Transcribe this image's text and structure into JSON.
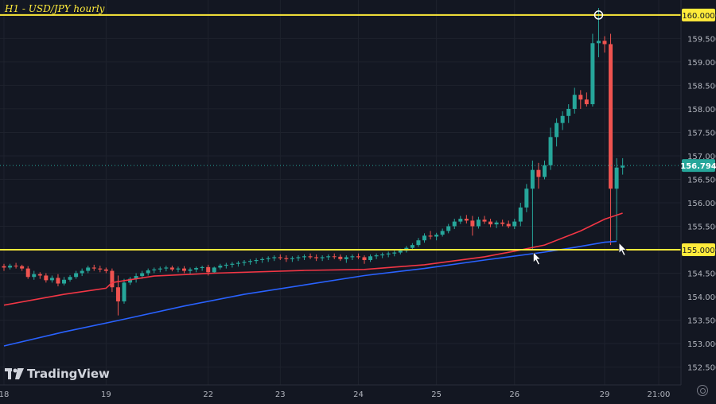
{
  "chart_data": {
    "type": "candlestick",
    "title": "H1 - USD/JPY hourly",
    "watermark": "TradingView",
    "y_ticks": [
      "152.500",
      "153.000",
      "153.500",
      "154.000",
      "154.500",
      "155.000",
      "155.500",
      "156.000",
      "156.500",
      "157.000",
      "157.500",
      "158.000",
      "158.500",
      "159.000",
      "159.500",
      "160.000"
    ],
    "ylim": [
      152.12,
      160.32
    ],
    "x_ticks": [
      {
        "label": "18",
        "index": 0
      },
      {
        "label": "19",
        "index": 17
      },
      {
        "label": "22",
        "index": 34
      },
      {
        "label": "23",
        "index": 46
      },
      {
        "label": "24",
        "index": 59
      },
      {
        "label": "25",
        "index": 72
      },
      {
        "label": "26",
        "index": 85
      },
      {
        "label": "29",
        "index": 100
      },
      {
        "label": "21:00",
        "index": 109
      }
    ],
    "current_price": "156.794",
    "levels": [
      {
        "price": "160.000",
        "color": "#ffeb3b"
      },
      {
        "price": "155.000",
        "color": "#ffeb3b"
      }
    ],
    "colors": {
      "up": "#26a69a",
      "down": "#ef5350",
      "ma_fast": "#f23645",
      "ma_slow": "#2962ff",
      "level": "#ffeb3b",
      "price_tag": "#26a69a",
      "grid": "#1e222d",
      "axis_text": "#b2b5be"
    },
    "candles": [
      [
        154.65,
        154.7,
        154.55,
        154.62
      ],
      [
        154.62,
        154.7,
        154.58,
        154.66
      ],
      [
        154.66,
        154.72,
        154.6,
        154.65
      ],
      [
        154.65,
        154.68,
        154.55,
        154.6
      ],
      [
        154.6,
        154.65,
        154.38,
        154.42
      ],
      [
        154.42,
        154.55,
        154.36,
        154.48
      ],
      [
        154.48,
        154.52,
        154.38,
        154.45
      ],
      [
        154.45,
        154.5,
        154.3,
        154.35
      ],
      [
        154.35,
        154.45,
        154.3,
        154.4
      ],
      [
        154.4,
        154.48,
        154.22,
        154.28
      ],
      [
        154.28,
        154.42,
        154.24,
        154.36
      ],
      [
        154.36,
        154.46,
        154.32,
        154.42
      ],
      [
        154.42,
        154.55,
        154.38,
        154.5
      ],
      [
        154.5,
        154.6,
        154.44,
        154.55
      ],
      [
        154.55,
        154.66,
        154.5,
        154.62
      ],
      [
        154.62,
        154.68,
        154.55,
        154.6
      ],
      [
        154.6,
        154.66,
        154.52,
        154.58
      ],
      [
        154.58,
        154.62,
        154.5,
        154.55
      ],
      [
        154.55,
        154.6,
        154.1,
        154.2
      ],
      [
        154.2,
        154.45,
        153.6,
        153.9
      ],
      [
        153.9,
        154.38,
        153.85,
        154.3
      ],
      [
        154.3,
        154.42,
        154.25,
        154.38
      ],
      [
        154.38,
        154.5,
        154.3,
        154.44
      ],
      [
        154.44,
        154.55,
        154.38,
        154.5
      ],
      [
        154.5,
        154.6,
        154.45,
        154.56
      ],
      [
        154.56,
        154.62,
        154.5,
        154.58
      ],
      [
        154.58,
        154.64,
        154.52,
        154.6
      ],
      [
        154.6,
        154.66,
        154.54,
        154.62
      ],
      [
        154.62,
        154.66,
        154.54,
        154.58
      ],
      [
        154.58,
        154.64,
        154.52,
        154.6
      ],
      [
        154.6,
        154.65,
        154.5,
        154.55
      ],
      [
        154.55,
        154.62,
        154.48,
        154.58
      ],
      [
        154.58,
        154.64,
        154.52,
        154.61
      ],
      [
        154.61,
        154.66,
        154.55,
        154.63
      ],
      [
        154.63,
        154.68,
        154.45,
        154.52
      ],
      [
        154.52,
        154.64,
        154.5,
        154.62
      ],
      [
        154.62,
        154.7,
        154.58,
        154.66
      ],
      [
        154.66,
        154.72,
        154.6,
        154.68
      ],
      [
        154.68,
        154.74,
        154.62,
        154.7
      ],
      [
        154.7,
        154.76,
        154.64,
        154.72
      ],
      [
        154.72,
        154.78,
        154.66,
        154.74
      ],
      [
        154.74,
        154.8,
        154.68,
        154.76
      ],
      [
        154.76,
        154.82,
        154.7,
        154.78
      ],
      [
        154.78,
        154.84,
        154.72,
        154.8
      ],
      [
        154.8,
        154.86,
        154.74,
        154.82
      ],
      [
        154.82,
        154.88,
        154.76,
        154.84
      ],
      [
        154.84,
        154.9,
        154.78,
        154.82
      ],
      [
        154.82,
        154.88,
        154.74,
        154.8
      ],
      [
        154.8,
        154.86,
        154.74,
        154.82
      ],
      [
        154.82,
        154.88,
        154.76,
        154.84
      ],
      [
        154.84,
        154.9,
        154.78,
        154.86
      ],
      [
        154.86,
        154.92,
        154.8,
        154.84
      ],
      [
        154.84,
        154.9,
        154.76,
        154.82
      ],
      [
        154.82,
        154.88,
        154.76,
        154.84
      ],
      [
        154.84,
        154.9,
        154.78,
        154.86
      ],
      [
        154.86,
        154.92,
        154.8,
        154.85
      ],
      [
        154.85,
        154.9,
        154.76,
        154.8
      ],
      [
        154.8,
        154.88,
        154.72,
        154.84
      ],
      [
        154.84,
        154.9,
        154.78,
        154.86
      ],
      [
        154.86,
        154.92,
        154.8,
        154.84
      ],
      [
        154.84,
        154.88,
        154.7,
        154.78
      ],
      [
        154.78,
        154.9,
        154.74,
        154.86
      ],
      [
        154.86,
        154.92,
        154.8,
        154.88
      ],
      [
        154.88,
        154.94,
        154.82,
        154.9
      ],
      [
        154.9,
        154.96,
        154.84,
        154.92
      ],
      [
        154.92,
        154.98,
        154.86,
        154.94
      ],
      [
        154.94,
        155.02,
        154.9,
        154.98
      ],
      [
        154.98,
        155.08,
        154.94,
        155.04
      ],
      [
        155.04,
        155.14,
        155.0,
        155.1
      ],
      [
        155.1,
        155.25,
        155.06,
        155.2
      ],
      [
        155.2,
        155.35,
        155.15,
        155.3
      ],
      [
        155.3,
        155.4,
        155.22,
        155.28
      ],
      [
        155.28,
        155.36,
        155.2,
        155.32
      ],
      [
        155.32,
        155.45,
        155.28,
        155.4
      ],
      [
        155.4,
        155.55,
        155.35,
        155.5
      ],
      [
        155.5,
        155.66,
        155.44,
        155.6
      ],
      [
        155.6,
        155.72,
        155.55,
        155.66
      ],
      [
        155.66,
        155.74,
        155.56,
        155.62
      ],
      [
        155.62,
        155.72,
        155.3,
        155.5
      ],
      [
        155.5,
        155.7,
        155.45,
        155.64
      ],
      [
        155.64,
        155.72,
        155.55,
        155.6
      ],
      [
        155.6,
        155.66,
        155.48,
        155.54
      ],
      [
        155.54,
        155.62,
        155.46,
        155.58
      ],
      [
        155.58,
        155.64,
        155.5,
        155.55
      ],
      [
        155.55,
        155.62,
        155.46,
        155.5
      ],
      [
        155.5,
        155.66,
        155.44,
        155.6
      ],
      [
        155.6,
        156.0,
        155.5,
        155.9
      ],
      [
        155.9,
        156.4,
        155.8,
        156.3
      ],
      [
        156.3,
        156.9,
        155.0,
        156.7
      ],
      [
        156.7,
        156.85,
        156.3,
        156.55
      ],
      [
        156.55,
        156.9,
        156.5,
        156.8
      ],
      [
        156.8,
        157.6,
        156.7,
        157.4
      ],
      [
        157.4,
        157.8,
        157.2,
        157.7
      ],
      [
        157.7,
        157.95,
        157.55,
        157.85
      ],
      [
        157.85,
        158.1,
        157.7,
        158.0
      ],
      [
        158.0,
        158.45,
        157.9,
        158.3
      ],
      [
        158.3,
        158.4,
        158.0,
        158.2
      ],
      [
        158.2,
        158.35,
        158.05,
        158.1
      ],
      [
        158.1,
        159.6,
        158.05,
        159.4
      ],
      [
        159.4,
        160.15,
        159.1,
        159.45
      ],
      [
        159.45,
        159.55,
        159.2,
        159.38
      ],
      [
        159.38,
        159.6,
        155.1,
        156.3
      ],
      [
        156.3,
        156.95,
        155.2,
        156.75
      ],
      [
        156.75,
        156.95,
        156.6,
        156.79
      ]
    ],
    "ma_fast": [
      [
        0,
        153.82
      ],
      [
        10,
        154.05
      ],
      [
        17,
        154.18
      ],
      [
        18,
        154.3
      ],
      [
        25,
        154.44
      ],
      [
        35,
        154.5
      ],
      [
        50,
        154.56
      ],
      [
        60,
        154.58
      ],
      [
        70,
        154.68
      ],
      [
        80,
        154.85
      ],
      [
        85,
        154.97
      ],
      [
        90,
        155.1
      ],
      [
        96,
        155.4
      ],
      [
        100,
        155.65
      ],
      [
        103,
        155.78
      ]
    ],
    "ma_slow": [
      [
        0,
        152.95
      ],
      [
        10,
        153.25
      ],
      [
        20,
        153.52
      ],
      [
        30,
        153.8
      ],
      [
        40,
        154.05
      ],
      [
        50,
        154.25
      ],
      [
        60,
        154.45
      ],
      [
        70,
        154.6
      ],
      [
        80,
        154.78
      ],
      [
        90,
        154.95
      ],
      [
        95,
        155.05
      ],
      [
        100,
        155.16
      ],
      [
        102,
        155.18
      ]
    ]
  }
}
